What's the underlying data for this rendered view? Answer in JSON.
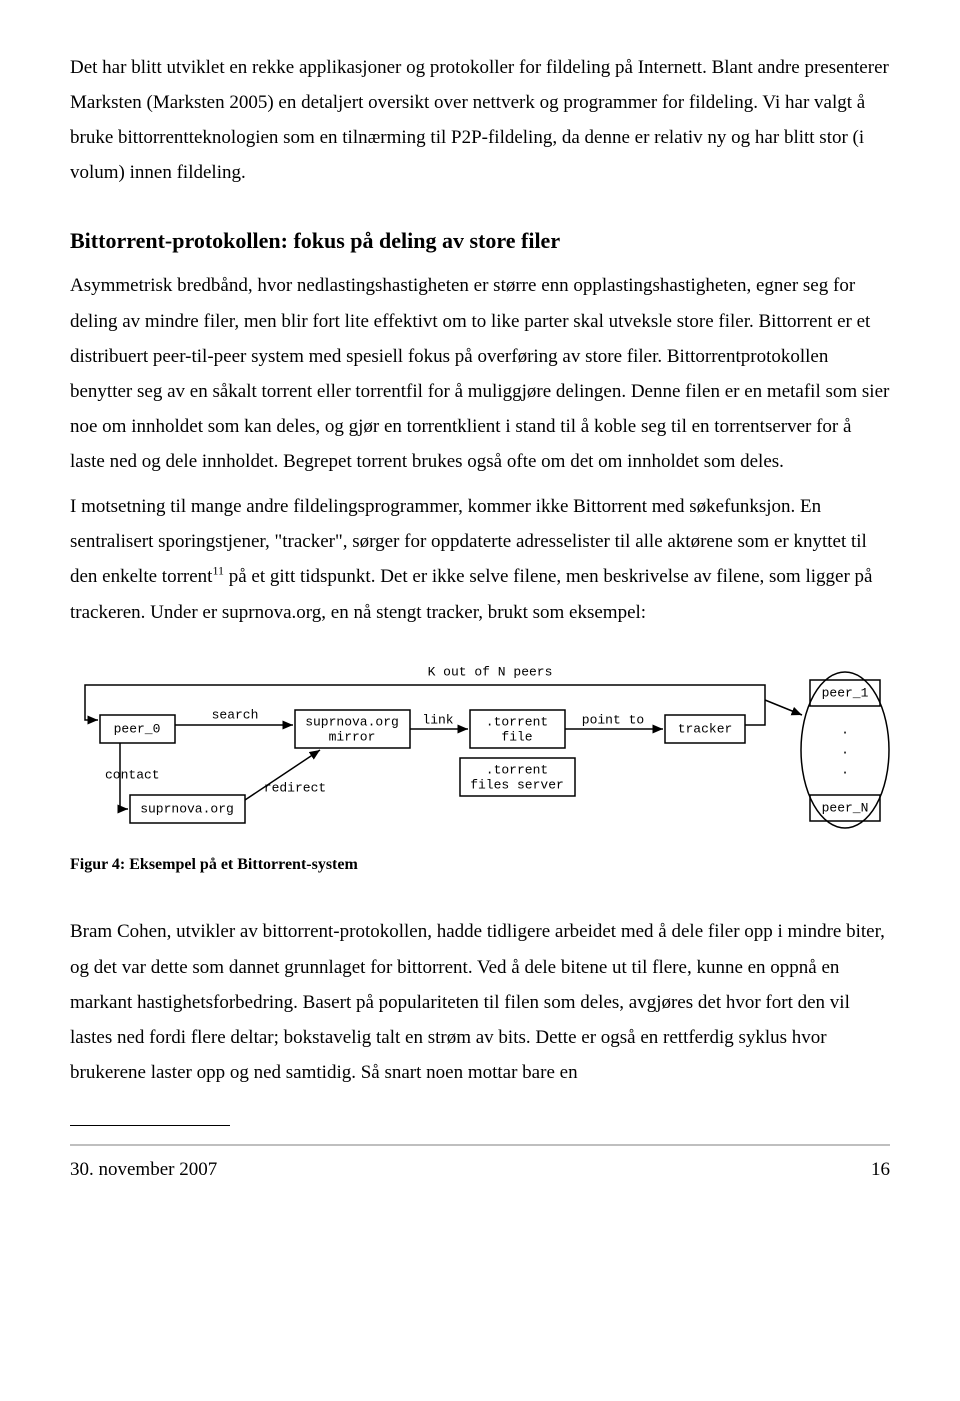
{
  "paragraphs": {
    "p1": "Det har blitt utviklet en rekke applikasjoner og protokoller for fildeling på Internett. Blant andre presenterer Marksten (Marksten 2005) en detaljert oversikt over nettverk og programmer for fildeling. Vi har valgt å bruke bittorrentteknologien som en tilnærming til P2P-fildeling, da denne er relativ ny og har blitt stor (i volum) innen fildeling.",
    "heading": "Bittorrent-protokollen: fokus på deling av store filer",
    "p2": "Asymmetrisk bredbånd, hvor nedlastingshastigheten er større enn opplastingshastigheten, egner seg for deling av mindre filer, men blir fort lite effektivt om to like parter skal utveksle store filer. Bittorrent er et distribuert peer-til-peer system med spesiell fokus på overføring av store filer. Bittorrentprotokollen benytter seg av en såkalt torrent eller torrentfil for å muliggjøre delingen. Denne filen er en metafil som sier noe om innholdet som kan deles, og gjør en torrentklient i stand til å koble seg til en torrentserver for å laste ned og dele innholdet. Begrepet torrent brukes også ofte om det om innholdet som deles.",
    "p3a": "I motsetning til mange andre fildelingsprogrammer, kommer ikke Bittorrent med søkefunksjon. En sentralisert sporingstjener, \"tracker\", sørger for oppdaterte adresselister til alle aktørene som er knyttet til den enkelte torrent",
    "fn": "11",
    "p3b": " på et gitt tidspunkt. Det er ikke selve filene, men beskrivelse av filene, som ligger på trackeren. Under er suprnova.org, en nå stengt tracker, brukt som eksempel:",
    "caption": "Figur 4: Eksempel på et Bittorrent-system",
    "p4": "Bram Cohen, utvikler av bittorrent-protokollen, hadde tidligere arbeidet med å dele filer opp i mindre biter, og det var dette som dannet grunnlaget for bittorrent. Ved å dele bitene ut til flere, kunne en oppnå en markant hastighetsforbedring. Basert på populariteten til filen som deles, avgjøres det hvor fort den vil lastes ned fordi flere deltar; bokstavelig talt en strøm av bits. Dette er også en rettferdig syklus hvor brukerene laster opp og ned samtidig. Så snart noen mottar bare en"
  },
  "diagram": {
    "title": "K out of N peers",
    "nodes": {
      "peer0": "peer_0",
      "suprnova": "suprnova.org",
      "mirror_l1": "suprnova.org",
      "mirror_l2": "mirror",
      "torrent_l1": ".torrent",
      "torrent_l2": "file",
      "server_l1": ".torrent",
      "server_l2": "files server",
      "tracker": "tracker",
      "peer1": "peer_1",
      "peerN": "peer_N"
    },
    "edges": {
      "search": "search",
      "contact": "contact",
      "redirect": "redirect",
      "link": "link",
      "pointto": "point to"
    },
    "stroke": "#000000",
    "font": "Courier, monospace"
  },
  "footer": {
    "date": "30. november 2007",
    "page": "16"
  }
}
